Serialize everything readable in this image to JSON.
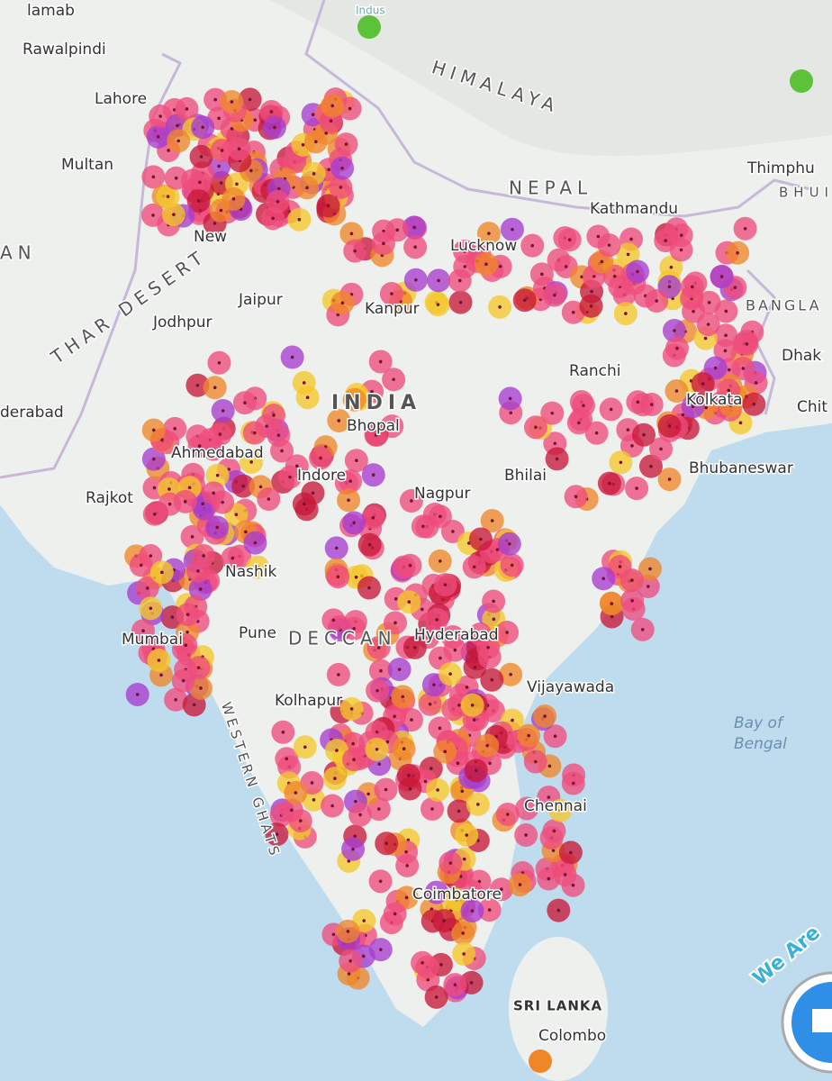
{
  "map": {
    "places": [
      {
        "label": "lamab"
      },
      {
        "label": "Rawalpindi"
      },
      {
        "label": "Lahore"
      },
      {
        "label": "Multan"
      },
      {
        "label": "AN"
      },
      {
        "label": "THAR DESERT"
      },
      {
        "label": "HIMALAYA"
      },
      {
        "label": "NEPAL"
      },
      {
        "label": "Thimphu"
      },
      {
        "label": "BHUIA"
      },
      {
        "label": "Kathmandu"
      },
      {
        "label": "New"
      },
      {
        "label": "Jaipur"
      },
      {
        "label": "Jodhpur"
      },
      {
        "label": "Lucknow"
      },
      {
        "label": "Kanpur"
      },
      {
        "label": "BANGLA"
      },
      {
        "label": "Dhak"
      },
      {
        "label": "Ranchi"
      },
      {
        "label": "INDIA"
      },
      {
        "label": "Kolkata"
      },
      {
        "label": "Chit"
      },
      {
        "label": "derabad"
      },
      {
        "label": "Bhopal"
      },
      {
        "label": "Ahmedabad"
      },
      {
        "label": "Indore"
      },
      {
        "label": "Rajkot"
      },
      {
        "label": "Nagpur"
      },
      {
        "label": "Bhilai"
      },
      {
        "label": "Bhubaneswar"
      },
      {
        "label": "Nashik"
      },
      {
        "label": "Mumbai"
      },
      {
        "label": "Pune"
      },
      {
        "label": "DECCAN"
      },
      {
        "label": "Hyderabad"
      },
      {
        "label": "Vijayawada"
      },
      {
        "label": "Bay of"
      },
      {
        "label": "Bengal"
      },
      {
        "label": "Kolhapur"
      },
      {
        "label": "WESTERN GHATS"
      },
      {
        "label": "Chennai"
      },
      {
        "label": "Coimbatore"
      },
      {
        "label": "SRI LANKA"
      },
      {
        "label": "Colombo"
      },
      {
        "label": "Indus"
      }
    ],
    "badge": {
      "label": "We Are"
    }
  }
}
